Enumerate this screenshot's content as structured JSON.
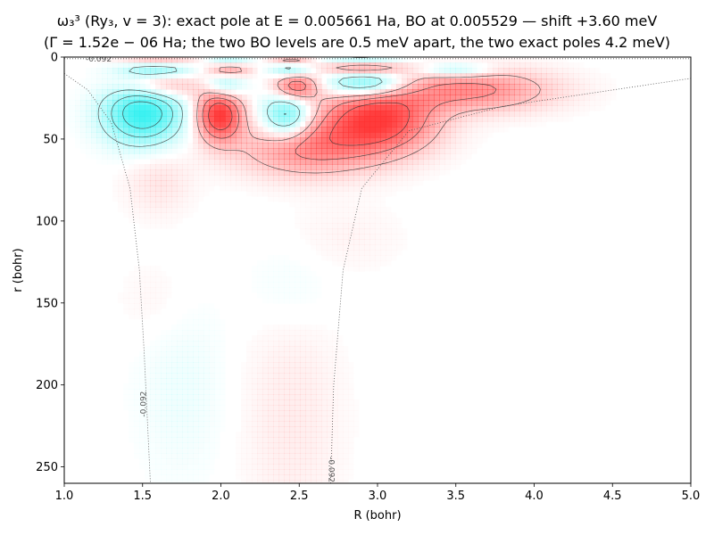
{
  "chart_data": {
    "type": "heatmap",
    "title": [
      "ω₃³ (Ry₃, v = 3): exact pole at E = 0.005661 Ha, BO at 0.005529 — shift +3.60 meV",
      "(Γ = 1.52e − 06 Ha; the two BO levels are 0.5 meV apart, the two exact poles 4.2 meV)"
    ],
    "title_line1": "ω₃³ (Ry₃, v = 3): exact pole at E = 0.005661 Ha, BO at 0.005529 — shift +3.60 meV",
    "title_line2": "(Γ = 1.52e − 06 Ha; the two BO levels are 0.5 meV apart, the two exact poles 4.2 meV)",
    "xlabel": "R (bohr)",
    "ylabel": "r (bohr)",
    "xlim": [
      1.0,
      5.0
    ],
    "ylim": [
      260,
      0
    ],
    "x_ticks": [
      "1.0",
      "1.5",
      "2.0",
      "2.5",
      "3.0",
      "3.5",
      "4.0",
      "4.5",
      "5.0"
    ],
    "y_ticks": [
      "0",
      "50",
      "100",
      "150",
      "200",
      "250"
    ],
    "y_inverted": true,
    "grid": false,
    "colormap": {
      "positive": "#ff3030",
      "negative": "#30f0f0",
      "zero": "#ffffff"
    },
    "potential_contour": {
      "level_label": "-0.092",
      "style": "dotted",
      "curves": [
        {
          "points": [
            [
              1.0,
              10
            ],
            [
              1.15,
              20
            ],
            [
              1.3,
              40
            ],
            [
              1.42,
              80
            ],
            [
              1.48,
              130
            ],
            [
              1.51,
              180
            ],
            [
              1.53,
              220
            ],
            [
              1.55,
              260
            ]
          ]
        },
        {
          "points": [
            [
              2.7,
              260
            ],
            [
              2.72,
              200
            ],
            [
              2.78,
              130
            ],
            [
              2.9,
              80
            ],
            [
              3.2,
              45
            ],
            [
              3.8,
              30
            ],
            [
              5.0,
              13
            ]
          ]
        },
        {
          "points": [
            [
              1.0,
              1
            ],
            [
              3.0,
              1
            ],
            [
              5.0,
              1
            ]
          ]
        }
      ]
    },
    "lobes": [
      {
        "R": 1.5,
        "r": 34,
        "amp": -1.0,
        "sR": 0.17,
        "sr": 13
      },
      {
        "R": 1.99,
        "r": 35,
        "amp": 1.0,
        "sR": 0.1,
        "sr": 11
      },
      {
        "R": 2.42,
        "r": 36,
        "amp": -0.7,
        "sR": 0.11,
        "sr": 10
      },
      {
        "R": 3.0,
        "r": 38,
        "amp": 0.95,
        "sR": 0.25,
        "sr": 14
      },
      {
        "R": 3.6,
        "r": 20,
        "amp": 0.55,
        "sR": 0.35,
        "sr": 9
      },
      {
        "R": 2.55,
        "r": 55,
        "amp": 0.55,
        "sR": 0.3,
        "sr": 12
      },
      {
        "R": 1.6,
        "r": 18,
        "amp": 0.45,
        "sR": 0.18,
        "sr": 6
      },
      {
        "R": 2.02,
        "r": 17,
        "amp": -0.45,
        "sR": 0.09,
        "sr": 6
      },
      {
        "R": 2.48,
        "r": 18,
        "amp": 0.7,
        "sR": 0.1,
        "sr": 6
      },
      {
        "R": 2.93,
        "r": 16,
        "amp": -0.75,
        "sR": 0.18,
        "sr": 6
      },
      {
        "R": 1.6,
        "r": 8,
        "amp": -0.4,
        "sR": 0.16,
        "sr": 3
      },
      {
        "R": 2.05,
        "r": 8,
        "amp": 0.45,
        "sR": 0.1,
        "sr": 3
      },
      {
        "R": 2.45,
        "r": 8,
        "amp": -0.45,
        "sR": 0.1,
        "sr": 3
      },
      {
        "R": 2.9,
        "r": 7,
        "amp": 0.5,
        "sR": 0.18,
        "sr": 3
      },
      {
        "R": 3.5,
        "r": 8,
        "amp": -0.4,
        "sR": 0.16,
        "sr": 3
      },
      {
        "R": 1.6,
        "r": 2,
        "amp": 0.3,
        "sR": 0.18,
        "sr": 2
      },
      {
        "R": 2.05,
        "r": 2,
        "amp": -0.3,
        "sR": 0.1,
        "sr": 2
      },
      {
        "R": 2.45,
        "r": 2,
        "amp": 0.35,
        "sR": 0.1,
        "sr": 2
      },
      {
        "R": 2.9,
        "r": 1,
        "amp": -0.35,
        "sR": 0.18,
        "sr": 2
      },
      {
        "R": 1.6,
        "r": 75,
        "amp": 0.12,
        "sR": 0.15,
        "sr": 15
      },
      {
        "R": 1.75,
        "r": 200,
        "amp": -0.08,
        "sR": 0.2,
        "sr": 40
      },
      {
        "R": 2.45,
        "r": 220,
        "amp": 0.09,
        "sR": 0.22,
        "sr": 50
      },
      {
        "R": 2.45,
        "r": 140,
        "amp": -0.06,
        "sR": 0.2,
        "sr": 20
      },
      {
        "R": 1.6,
        "r": 150,
        "amp": 0.05,
        "sR": 0.18,
        "sr": 20
      },
      {
        "R": 2.8,
        "r": 110,
        "amp": 0.05,
        "sR": 0.25,
        "sr": 15
      }
    ]
  }
}
